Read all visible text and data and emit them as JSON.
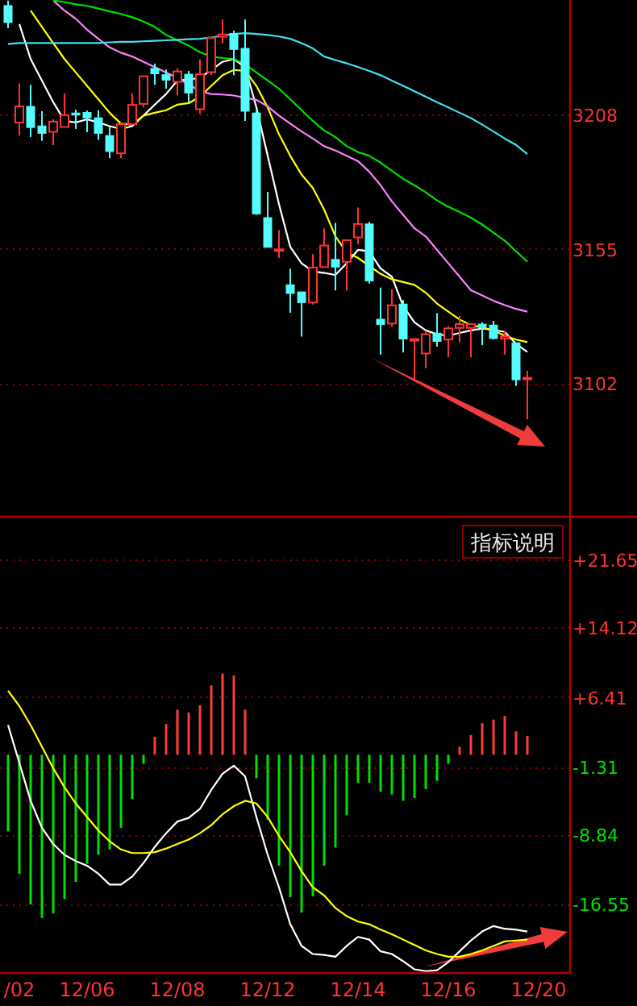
{
  "chart_data": [
    {
      "type": "candlestick",
      "categories": [
        null,
        null,
        null,
        null,
        null,
        null,
        null,
        null,
        null,
        null,
        null,
        null,
        null,
        null,
        null,
        null,
        null,
        null,
        null,
        null,
        null,
        null,
        null,
        null,
        null,
        null,
        null,
        null,
        null,
        null,
        null,
        null,
        null,
        null,
        null,
        null,
        null,
        null,
        null,
        null,
        null,
        null,
        null,
        null,
        null,
        null,
        null,
        null
      ],
      "ohlc": [
        [
          3251.0,
          3253.0,
          3242.1,
          3244.3
        ],
        [
          3204.8,
          3220.3,
          3199.7,
          3211.2
        ],
        [
          3211.2,
          3219.7,
          3199.1,
          3202.9
        ],
        [
          3203.5,
          3209.3,
          3197.6,
          3200.6
        ],
        [
          3201.2,
          3206.1,
          3195.9,
          3205.2
        ],
        [
          3203.1,
          3216.3,
          3203.1,
          3207.8
        ],
        [
          3208.6,
          3209.9,
          3202.3,
          3207.8
        ],
        [
          3208.8,
          3209.5,
          3201.0,
          3206.7
        ],
        [
          3206.7,
          3209.7,
          3198.0,
          3200.6
        ],
        [
          3199.7,
          3203.1,
          3190.8,
          3193.4
        ],
        [
          3192.7,
          3204.8,
          3190.8,
          3204.2
        ],
        [
          3204.2,
          3216.3,
          3204.2,
          3211.8
        ],
        [
          3212.2,
          3223.1,
          3210.8,
          3223.1
        ],
        [
          3226.2,
          3228.1,
          3219.7,
          3224.1
        ],
        [
          3223.7,
          3225.8,
          3218.2,
          3221.6
        ],
        [
          3220.9,
          3226.2,
          3215.6,
          3225.0
        ],
        [
          3223.9,
          3225.2,
          3212.9,
          3216.5
        ],
        [
          3210.1,
          3229.8,
          3208.2,
          3223.9
        ],
        [
          3224.7,
          3238.3,
          3223.5,
          3238.3
        ],
        [
          3238.7,
          3245.5,
          3236.2,
          3239.6
        ],
        [
          3240.0,
          3241.1,
          3223.5,
          3233.7
        ],
        [
          3234.1,
          3245.5,
          3205.5,
          3209.3
        ],
        [
          3208.6,
          3209.7,
          3168.4,
          3168.8
        ],
        [
          3167.3,
          3177.5,
          3155.6,
          3155.6
        ],
        [
          3154.6,
          3162.4,
          3151.4,
          3154.8
        ],
        [
          3140.8,
          3147.2,
          3129.8,
          3137.4
        ],
        [
          3138.0,
          3138.0,
          3120.4,
          3133.8
        ],
        [
          3133.8,
          3152.9,
          3133.0,
          3147.6
        ],
        [
          3147.8,
          3163.1,
          3147.8,
          3156.3
        ],
        [
          3150.8,
          3165.2,
          3138.6,
          3147.8
        ],
        [
          3149.9,
          3158.4,
          3138.6,
          3158.4
        ],
        [
          3159.5,
          3171.3,
          3156.7,
          3164.8
        ],
        [
          3164.8,
          3165.6,
          3141.3,
          3142.3
        ],
        [
          3127.2,
          3139.7,
          3113.2,
          3125.1
        ],
        [
          3125.5,
          3139.0,
          3124.3,
          3132.7
        ],
        [
          3133.2,
          3134.8,
          3114.1,
          3119.4
        ],
        [
          3118.8,
          3119.4,
          3102.6,
          3119.4
        ],
        [
          3113.7,
          3122.8,
          3107.9,
          3121.3
        ],
        [
          3121.7,
          3129.6,
          3116.4,
          3118.5
        ],
        [
          3119.2,
          3124.5,
          3112.2,
          3123.6
        ],
        [
          3123.8,
          3128.5,
          3118.1,
          3125.3
        ],
        [
          3123.8,
          3125.3,
          3112.2,
          3125.3
        ],
        [
          3125.3,
          3126.0,
          3117.0,
          3124.0
        ],
        [
          3124.9,
          3126.6,
          3119.2,
          3119.6
        ],
        [
          3119.6,
          3122.5,
          3113.2,
          3120.4
        ],
        [
          3117.9,
          3117.9,
          3100.9,
          3103.3
        ],
        [
          3103.7,
          3106.9,
          3087.8,
          3104.1
        ],
        null
      ],
      "colors": [
        "#54fcfc",
        "#ff3232",
        "#54fcfc",
        "#54fcfc",
        "#ff3232",
        "#ff3232",
        "#54fcfc",
        "#54fcfc",
        "#54fcfc",
        "#54fcfc",
        "#ff3232",
        "#ff3232",
        "#ff3232",
        "#54fcfc",
        "#54fcfc",
        "#ff3232",
        "#54fcfc",
        "#ff3232",
        "#ff3232",
        "#ff3232",
        "#54fcfc",
        "#54fcfc",
        "#54fcfc",
        "#54fcfc",
        "#ff3232",
        "#54fcfc",
        "#54fcfc",
        "#ff3232",
        "#ff3232",
        "#54fcfc",
        "#ff3232",
        "#ff3232",
        "#54fcfc",
        "#54fcfc",
        "#ff3232",
        "#54fcfc",
        "#ff3232",
        "#ff3232",
        "#54fcfc",
        "#ff3232",
        "#ff3232",
        "#ff3232",
        "#54fcfc",
        "#54fcfc",
        "#ff3232",
        "#54fcfc",
        "#ff3232",
        null
      ],
      "series": [
        {
          "type": "line",
          "color": "#ffffff",
          "values": [
            null,
            3243.7,
            3229.9,
            3221.4,
            3212.9,
            3205.5,
            3204.9,
            3206.1,
            3204.9,
            3203.4,
            3202.3,
            3203.4,
            3207.6,
            3211.9,
            3216.1,
            3221.4,
            3221.8,
            3222.5,
            3225.6,
            3228.8,
            3229.9,
            3226.7,
            3210.8,
            3191.7,
            3172.6,
            3155.7,
            3149.3,
            3146.1,
            3145.5,
            3144.7,
            3149.3,
            3154.6,
            3154.0,
            3147.2,
            3144.0,
            3132.4,
            3126.0,
            3122.8,
            3121.3,
            3120.7,
            3121.8,
            3122.8,
            3123.5,
            3123.0,
            3122.2,
            3117.5,
            3114.3,
            null
          ]
        },
        {
          "type": "line",
          "color": "#ffff00",
          "values": [
            null,
            null,
            3249.0,
            3242.6,
            3236.2,
            3229.9,
            3224.6,
            3219.3,
            3214.0,
            3208.7,
            3204.4,
            3204.0,
            3207.6,
            3208.7,
            3209.7,
            3211.9,
            3212.5,
            3215.0,
            3219.3,
            3223.5,
            3225.6,
            3225.2,
            3219.3,
            3210.8,
            3200.2,
            3191.7,
            3184.3,
            3179.0,
            3170.5,
            3159.9,
            3153.6,
            3151.4,
            3148.3,
            3145.1,
            3143.0,
            3141.9,
            3140.8,
            3137.7,
            3133.4,
            3130.2,
            3127.1,
            3124.9,
            3123.9,
            3122.8,
            3120.7,
            3119.2,
            3118.2,
            null
          ]
        },
        {
          "type": "line",
          "color": "#ff80ff",
          "values": [
            null,
            null,
            null,
            null,
            3253.0,
            3249.0,
            3245.8,
            3241.5,
            3237.9,
            3234.5,
            3232.4,
            3230.9,
            3228.8,
            3226.7,
            3224.6,
            3222.5,
            3219.9,
            3217.2,
            3216.1,
            3215.9,
            3215.5,
            3214.6,
            3213.8,
            3211.2,
            3207.6,
            3204.4,
            3201.3,
            3198.5,
            3195.5,
            3193.8,
            3191.7,
            3189.6,
            3185.4,
            3180.1,
            3173.7,
            3168.4,
            3163.1,
            3159.9,
            3154.6,
            3149.3,
            3144.0,
            3138.7,
            3136.6,
            3134.5,
            3132.8,
            3131.3,
            3130.2,
            null
          ]
        },
        {
          "type": "line",
          "color": "#00e000",
          "values": [
            null,
            null,
            null,
            null,
            3253.0,
            3252.4,
            3251.5,
            3250.9,
            3249.8,
            3248.7,
            3247.7,
            3246.4,
            3244.7,
            3242.6,
            3239.4,
            3237.3,
            3235.2,
            3232.6,
            3230.9,
            3230.3,
            3229.9,
            3227.8,
            3224.6,
            3221.4,
            3218.2,
            3214.0,
            3209.7,
            3205.5,
            3201.7,
            3199.1,
            3195.5,
            3193.2,
            3191.7,
            3189.0,
            3185.8,
            3182.6,
            3180.1,
            3177.3,
            3174.1,
            3171.6,
            3169.5,
            3167.3,
            3164.6,
            3161.4,
            3158.2,
            3154.0,
            3149.9,
            null
          ]
        },
        {
          "type": "line",
          "color": "#40e0f0",
          "values": [
            3235.8,
            3236.2,
            3236.2,
            3236.2,
            3236.2,
            3236.2,
            3236.2,
            3236.2,
            3236.2,
            3236.5,
            3236.7,
            3236.7,
            3236.9,
            3237.1,
            3237.3,
            3237.5,
            3237.7,
            3237.9,
            3238.4,
            3239.2,
            3239.8,
            3240.1,
            3239.8,
            3239.4,
            3238.8,
            3237.9,
            3236.2,
            3234.1,
            3230.9,
            3229.5,
            3228.2,
            3226.7,
            3225.2,
            3223.5,
            3221.4,
            3219.3,
            3217.2,
            3215.0,
            3212.9,
            3210.8,
            3208.7,
            3206.6,
            3204.0,
            3201.3,
            3198.5,
            3196.0,
            3192.4,
            null
          ]
        }
      ],
      "ylim": [
        3049.6,
        3253.2
      ],
      "yticks": [
        3208,
        3155,
        3102
      ],
      "grid": "y",
      "tick_labels": "y"
    },
    {
      "type": "bar",
      "categories": [
        null,
        "/02",
        null,
        null,
        null,
        null,
        null,
        "12/06",
        null,
        null,
        null,
        null,
        null,
        null,
        null,
        "12/08",
        null,
        null,
        null,
        null,
        null,
        null,
        null,
        "12/12",
        null,
        null,
        null,
        null,
        null,
        null,
        null,
        "12/14",
        null,
        null,
        null,
        null,
        null,
        null,
        null,
        "12/16",
        null,
        null,
        null,
        null,
        null,
        null,
        null,
        "12/20"
      ],
      "series": [
        {
          "type": "bar",
          "colors": [
            "#00e000",
            "#00e000",
            "#00e000",
            "#00e000",
            "#00e000",
            "#00e000",
            "#00e000",
            "#00e000",
            "#00e000",
            "#00e000",
            "#00e000",
            "#00e000",
            "#00e000",
            "#ff3b3b",
            "#ff3b3b",
            "#ff3b3b",
            "#ff3b3b",
            "#ff3b3b",
            "#ff3b3b",
            "#ff3b3b",
            "#ff3b3b",
            "#ff3b3b",
            "#00e000",
            "#00e000",
            "#00e000",
            "#00e000",
            "#00e000",
            "#00e000",
            "#00e000",
            "#00e000",
            "#00e000",
            "#00e000",
            "#00e000",
            "#00e000",
            "#00e000",
            "#00e000",
            "#00e000",
            "#00e000",
            "#00e000",
            "#00e000",
            "#ff3b3b",
            "#ff3b3b",
            "#ff3b3b",
            "#ff3b3b",
            "#ff3b3b",
            "#ff3b3b",
            "#ff3b3b",
            null
          ],
          "values": [
            -8.5,
            -13.2,
            -16.6,
            -18.1,
            -17.6,
            -16.0,
            -14.1,
            -12.1,
            -11.1,
            -10.5,
            -8.1,
            -4.9,
            -1.0,
            2.0,
            3.4,
            5.0,
            4.7,
            5.5,
            7.7,
            9.0,
            8.8,
            5.0,
            -2.6,
            -7.2,
            -12.3,
            -15.8,
            -17.5,
            -15.7,
            -12.3,
            -10.3,
            -6.7,
            -3.1,
            -3.1,
            -4.1,
            -4.4,
            -5.1,
            -4.8,
            -3.8,
            -2.9,
            -1.0,
            0.9,
            2.2,
            3.5,
            3.9,
            4.3,
            2.6,
            2.1,
            null
          ]
        },
        {
          "type": "line",
          "color": "#ffffff",
          "values": [
            3.3,
            -0.9,
            -5.1,
            -8.1,
            -9.9,
            -11.1,
            -11.8,
            -12.3,
            -13.2,
            -14.4,
            -14.4,
            -13.5,
            -12.0,
            -10.2,
            -8.7,
            -7.4,
            -7.0,
            -6.0,
            -3.9,
            -2.1,
            -1.2,
            -2.4,
            -6.9,
            -11.1,
            -14.7,
            -18.8,
            -21.2,
            -22.1,
            -22.2,
            -22.4,
            -21.2,
            -20.2,
            -20.5,
            -21.8,
            -22.1,
            -22.9,
            -23.8,
            -24.0,
            -23.9,
            -23.0,
            -21.8,
            -20.6,
            -19.6,
            -19.0,
            -19.3,
            -19.4,
            -19.6,
            null
          ]
        },
        {
          "type": "line",
          "color": "#ffff00",
          "values": [
            7.1,
            5.4,
            3.3,
            0.9,
            -1.5,
            -3.6,
            -5.4,
            -6.9,
            -8.4,
            -9.6,
            -10.5,
            -10.9,
            -10.9,
            -10.8,
            -10.4,
            -9.9,
            -9.4,
            -8.7,
            -7.8,
            -6.6,
            -5.7,
            -5.1,
            -5.4,
            -6.9,
            -9.0,
            -10.8,
            -12.9,
            -14.7,
            -15.6,
            -17.0,
            -17.9,
            -18.5,
            -18.8,
            -19.4,
            -19.9,
            -20.5,
            -21.1,
            -21.7,
            -22.1,
            -22.4,
            -22.4,
            -22.1,
            -21.7,
            -21.2,
            -20.7,
            -20.6,
            -20.5,
            null
          ]
        }
      ],
      "ylim": [
        -24.2,
        26.5
      ],
      "yticks": [
        {
          "value": 21.65,
          "label": "+21.65"
        },
        {
          "value": 14.12,
          "label": "+14.12"
        },
        {
          "value": 6.41,
          "label": "+6.41"
        },
        -1.31,
        -8.84,
        -16.55
      ],
      "grid": "y",
      "annotations": [
        "指标说明"
      ]
    }
  ]
}
